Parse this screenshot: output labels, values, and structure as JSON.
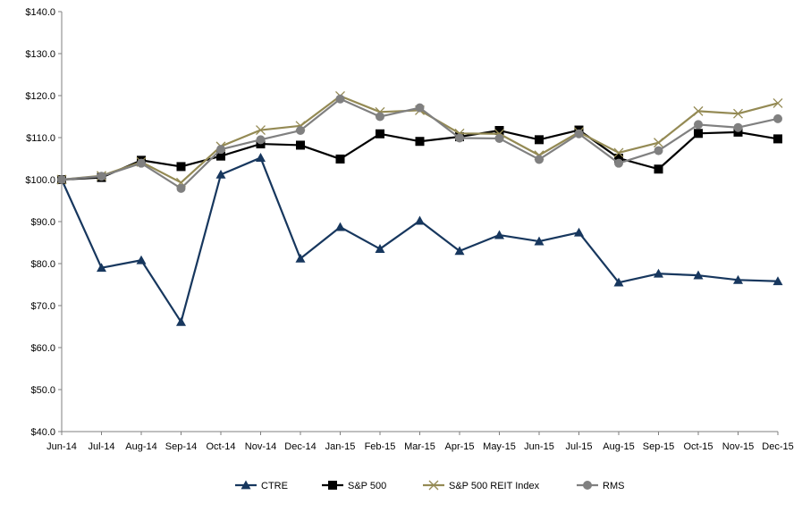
{
  "chart_data": {
    "type": "line",
    "title": "",
    "xlabel": "",
    "ylabel": "",
    "ylim": [
      40,
      140
    ],
    "y_tick_step": 10,
    "y_tick_labels": [
      "$40.0",
      "$50.0",
      "$60.0",
      "$70.0",
      "$80.0",
      "$90.0",
      "$100.0",
      "$110.0",
      "$120.0",
      "$130.0",
      "$140.0"
    ],
    "grid": false,
    "legend_position": "bottom",
    "categories": [
      "Jun-14",
      "Jul-14",
      "Aug-14",
      "Sep-14",
      "Oct-14",
      "Nov-14",
      "Dec-14",
      "Jan-15",
      "Feb-15",
      "Mar-15",
      "Apr-15",
      "May-15",
      "Jun-15",
      "Jul-15",
      "Aug-15",
      "Sep-15",
      "Oct-15",
      "Nov-15",
      "Dec-15"
    ],
    "series": [
      {
        "name": "CTRE",
        "color": "#17375e",
        "marker": "triangle",
        "values": [
          100.0,
          79.0,
          80.8,
          66.1,
          101.2,
          105.2,
          81.2,
          88.7,
          83.5,
          90.2,
          83.0,
          86.8,
          85.3,
          87.4,
          75.5,
          77.6,
          77.2,
          76.1,
          75.8
        ]
      },
      {
        "name": "S&P 500",
        "color": "#000000",
        "marker": "square",
        "values": [
          100.0,
          100.5,
          104.6,
          103.1,
          105.6,
          108.5,
          108.2,
          104.9,
          110.9,
          109.1,
          110.2,
          111.7,
          109.5,
          111.8,
          105.1,
          102.5,
          111.0,
          111.3,
          109.7
        ]
      },
      {
        "name": "S&P 500 REIT Index",
        "color": "#948a54",
        "marker": "x",
        "values": [
          100.0,
          100.9,
          104.2,
          99.3,
          107.9,
          111.8,
          112.8,
          119.9,
          116.1,
          116.5,
          111.0,
          110.9,
          105.8,
          111.3,
          106.4,
          108.8,
          116.3,
          115.7,
          118.2
        ]
      },
      {
        "name": "RMS",
        "color": "#808080",
        "marker": "circle",
        "values": [
          100.0,
          100.8,
          103.9,
          97.9,
          107.2,
          109.5,
          111.7,
          119.2,
          115.0,
          117.1,
          109.9,
          109.8,
          104.8,
          110.9,
          103.9,
          106.9,
          113.1,
          112.4,
          114.5
        ]
      }
    ]
  }
}
